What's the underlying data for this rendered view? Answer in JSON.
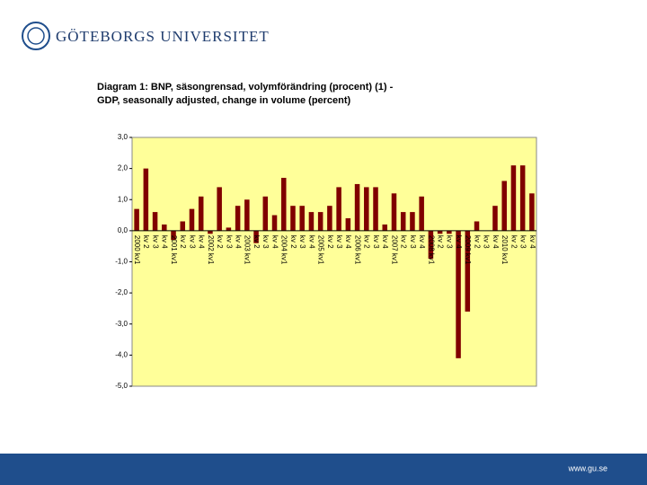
{
  "logo": "GÖTEBORGS UNIVERSITET",
  "footer": "www.gu.se",
  "chart_data": {
    "type": "bar",
    "title": "Diagram 1: BNP, säsongrensad, volymförändring (procent) (1) -",
    "subtitle": "GDP, seasonally adjusted, change in volume (percent)",
    "categories": [
      "2000 kv1",
      "kv 2",
      "kv 3",
      "kv 4",
      "2001 kv1",
      "kv 2",
      "kv 3",
      "kv 4",
      "2002 kv1",
      "kv 2",
      "kv 3",
      "kv 4",
      "2003 kv1",
      "kv 2",
      "kv 3",
      "kv 4",
      "2004 kv1",
      "kv 2",
      "kv 3",
      "kv 4",
      "2005 kv1",
      "kv 2",
      "kv 3",
      "kv 4",
      "2006 kv1",
      "kv 2",
      "kv 3",
      "kv 4",
      "2007 kv1",
      "kv 2",
      "kv 3",
      "kv 4",
      "2008 kv1",
      "kv 2",
      "kv 3",
      "kv 4",
      "2009 kv1",
      "kv 2",
      "kv 3",
      "kv 4",
      "2010 kv1",
      "kv 2",
      "kv 3",
      "kv 4"
    ],
    "values": [
      0.7,
      2.0,
      0.6,
      0.2,
      -0.3,
      0.3,
      0.7,
      1.1,
      -0.1,
      1.4,
      0.1,
      0.8,
      1.0,
      -0.4,
      1.1,
      0.5,
      1.7,
      0.8,
      0.8,
      0.6,
      0.6,
      0.8,
      1.4,
      0.4,
      1.5,
      1.4,
      1.4,
      0.2,
      1.2,
      0.6,
      0.6,
      1.1,
      -0.9,
      -0.1,
      -0.1,
      -4.1,
      -2.6,
      0.3,
      0.0,
      0.8,
      1.6,
      2.1,
      2.1,
      1.2
    ],
    "color": "#800000",
    "background": "#ffff99",
    "ylim": [
      -5,
      3
    ],
    "yticks": [
      {
        "value": 3,
        "label": "3,0"
      },
      {
        "value": 2,
        "label": "2,0"
      },
      {
        "value": 1,
        "label": "1,0"
      },
      {
        "value": 0,
        "label": "0,0"
      },
      {
        "value": -1,
        "label": "-1,0"
      },
      {
        "value": -2,
        "label": "-2,0"
      },
      {
        "value": -3,
        "label": "-3,0"
      },
      {
        "value": -4,
        "label": "-4,0"
      },
      {
        "value": -5,
        "label": "-5,0"
      }
    ]
  }
}
